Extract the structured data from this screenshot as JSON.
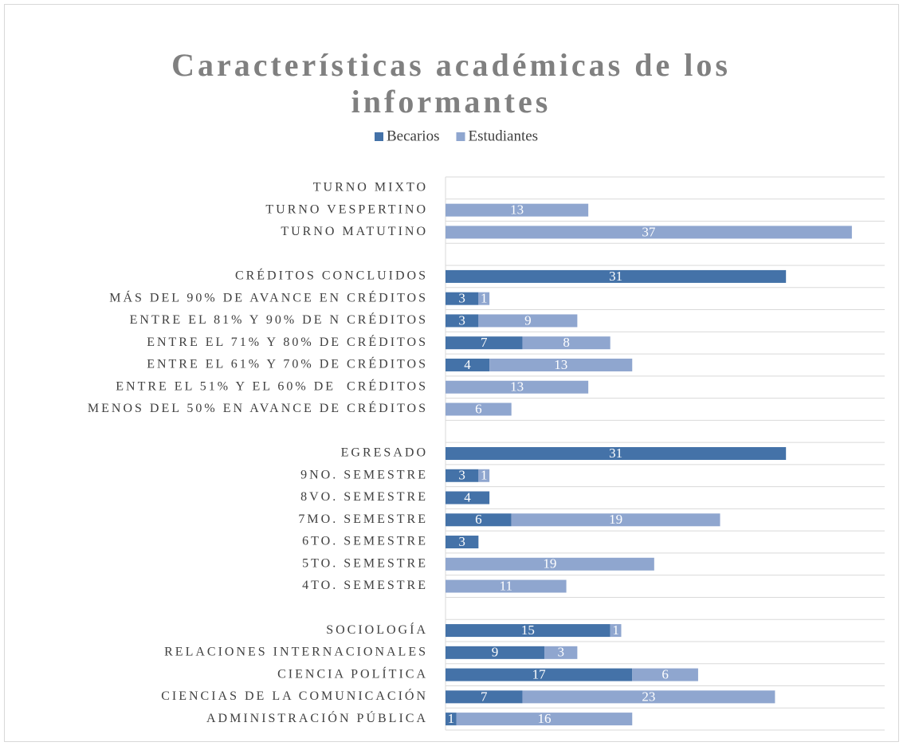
{
  "chart_data": {
    "type": "bar",
    "orientation": "horizontal",
    "stacked": true,
    "title": "Características académicas de los informantes",
    "title_lines": [
      "Características académicas de los",
      "informantes"
    ],
    "categories": [
      "TURNO MIXTO",
      "TURNO VESPERTINO",
      "TURNO MATUTINO",
      null,
      "CRÉDITOS CONCLUIDOS",
      "MÁS DEL 90% DE AVANCE EN CRÉDITOS",
      "ENTRE EL 81% Y 90% DE N CRÉDITOS",
      "ENTRE EL 71% Y 80% DE CRÉDITOS",
      "ENTRE EL 61% Y 70% DE CRÉDITOS",
      "ENTRE EL 51% Y EL 60% DE  CRÉDITOS",
      "MENOS DEL 50% EN AVANCE DE CRÉDITOS",
      null,
      "EGRESADO",
      "9NO. SEMESTRE",
      "8VO. SEMESTRE",
      "7MO. SEMESTRE",
      "6TO. SEMESTRE",
      "5TO. SEMESTRE",
      "4TO. SEMESTRE",
      null,
      "SOCIOLOGÍA",
      "RELACIONES INTERNACIONALES",
      "CIENCIA POLÍTICA",
      "CIENCIAS DE LA COMUNICACIÓN",
      "ADMINISTRACIÓN PÚBLICA"
    ],
    "series": [
      {
        "name": "Becarios",
        "color": "#4472a8",
        "values": [
          null,
          null,
          null,
          null,
          31,
          3,
          3,
          7,
          4,
          null,
          null,
          null,
          31,
          3,
          4,
          6,
          3,
          null,
          null,
          null,
          15,
          9,
          17,
          7,
          1
        ]
      },
      {
        "name": "Estudiantes",
        "color": "#8fa6cf",
        "values": [
          null,
          13,
          37,
          null,
          null,
          1,
          9,
          8,
          13,
          13,
          6,
          null,
          null,
          1,
          null,
          19,
          null,
          19,
          11,
          null,
          1,
          3,
          6,
          23,
          16
        ]
      }
    ],
    "legend": "top",
    "grid": true
  }
}
